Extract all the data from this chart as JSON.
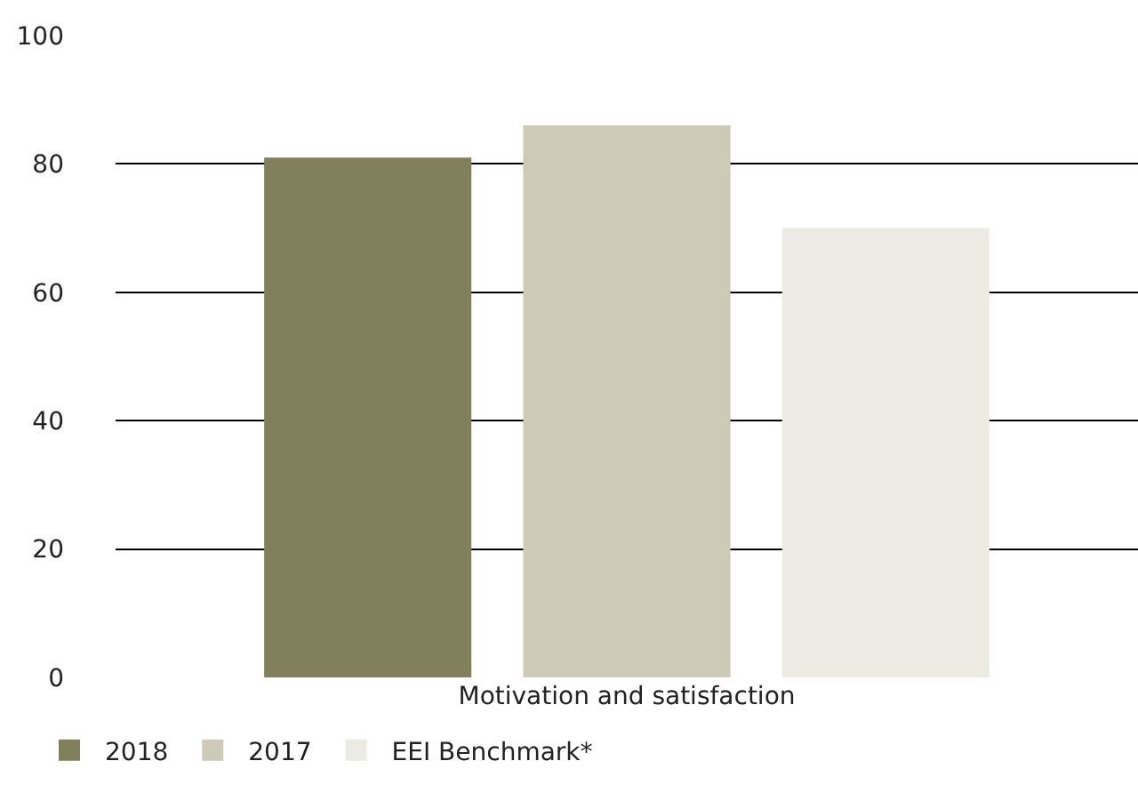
{
  "chart_data": {
    "type": "bar",
    "categories": [
      "Motivation and satisfaction"
    ],
    "series": [
      {
        "name": "2018",
        "color": "#827f5c",
        "values": [
          81
        ]
      },
      {
        "name": "2017",
        "color": "#cdcab8",
        "values": [
          86
        ]
      },
      {
        "name": "EEI Benchmark*",
        "color": "#ecebe3",
        "values": [
          70
        ]
      }
    ],
    "ylim": [
      0,
      100
    ],
    "yticks": [
      0,
      20,
      40,
      60,
      80,
      100
    ],
    "grid": "y",
    "legend": "bottom"
  }
}
